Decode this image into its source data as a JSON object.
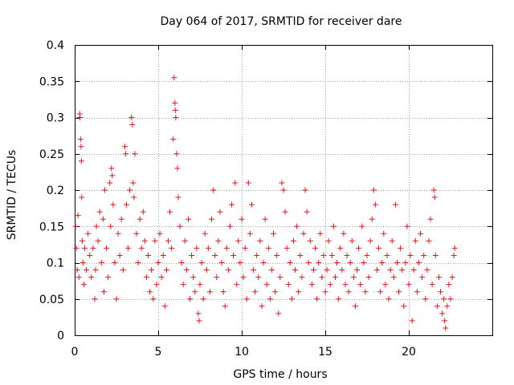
{
  "chart_data": {
    "type": "scatter",
    "title": "Day 064 of 2017, SRMTID for receiver dare",
    "xlabel": "GPS time / hours",
    "ylabel": "SRMTID / TECUs",
    "xlim": [
      0,
      25
    ],
    "ylim": [
      0,
      0.4
    ],
    "xticks": [
      0,
      5,
      10,
      15,
      20
    ],
    "xtick_labels": [
      "0",
      "5",
      "10",
      "15",
      "20"
    ],
    "yticks": [
      0,
      0.05,
      0.1,
      0.15,
      0.2,
      0.25,
      0.3,
      0.35,
      0.4
    ],
    "ytick_labels": [
      "0",
      "0.05",
      "0.1",
      "0.15",
      "0.2",
      "0.25",
      "0.3",
      "0.35",
      "0.4"
    ],
    "grid": true,
    "marker": "+",
    "color": "#e8141a",
    "series": [
      {
        "name": "SRMTID",
        "points": [
          [
            0.05,
            0.15
          ],
          [
            0.1,
            0.12
          ],
          [
            0.15,
            0.09
          ],
          [
            0.2,
            0.165
          ],
          [
            0.25,
            0.08
          ],
          [
            0.3,
            0.305
          ],
          [
            0.32,
            0.3
          ],
          [
            0.35,
            0.27
          ],
          [
            0.38,
            0.26
          ],
          [
            0.4,
            0.24
          ],
          [
            0.42,
            0.19
          ],
          [
            0.45,
            0.13
          ],
          [
            0.5,
            0.1
          ],
          [
            0.55,
            0.07
          ],
          [
            0.6,
            0.12
          ],
          [
            0.7,
            0.09
          ],
          [
            0.8,
            0.14
          ],
          [
            0.9,
            0.11
          ],
          [
            1.0,
            0.08
          ],
          [
            1.1,
            0.12
          ],
          [
            1.2,
            0.05
          ],
          [
            1.25,
            0.09
          ],
          [
            1.3,
            0.15
          ],
          [
            1.4,
            0.13
          ],
          [
            1.5,
            0.17
          ],
          [
            1.6,
            0.1
          ],
          [
            1.7,
            0.16
          ],
          [
            1.75,
            0.06
          ],
          [
            1.8,
            0.2
          ],
          [
            1.9,
            0.12
          ],
          [
            2.0,
            0.08
          ],
          [
            2.1,
            0.21
          ],
          [
            2.15,
            0.15
          ],
          [
            2.2,
            0.23
          ],
          [
            2.25,
            0.22
          ],
          [
            2.3,
            0.18
          ],
          [
            2.4,
            0.1
          ],
          [
            2.5,
            0.05
          ],
          [
            2.6,
            0.14
          ],
          [
            2.7,
            0.11
          ],
          [
            2.8,
            0.16
          ],
          [
            2.9,
            0.09
          ],
          [
            3.0,
            0.26
          ],
          [
            3.05,
            0.25
          ],
          [
            3.1,
            0.18
          ],
          [
            3.2,
            0.12
          ],
          [
            3.3,
            0.2
          ],
          [
            3.4,
            0.3
          ],
          [
            3.45,
            0.29
          ],
          [
            3.5,
            0.21
          ],
          [
            3.55,
            0.19
          ],
          [
            3.6,
            0.25
          ],
          [
            3.7,
            0.14
          ],
          [
            3.8,
            0.1
          ],
          [
            3.9,
            0.16
          ],
          [
            4.0,
            0.12
          ],
          [
            4.1,
            0.17
          ],
          [
            4.2,
            0.13
          ],
          [
            4.3,
            0.08
          ],
          [
            4.4,
            0.11
          ],
          [
            4.5,
            0.06
          ],
          [
            4.6,
            0.09
          ],
          [
            4.7,
            0.05
          ],
          [
            4.8,
            0.13
          ],
          [
            4.9,
            0.07
          ],
          [
            5.0,
            0.1
          ],
          [
            5.1,
            0.14
          ],
          [
            5.2,
            0.08
          ],
          [
            5.3,
            0.11
          ],
          [
            5.4,
            0.04
          ],
          [
            5.5,
            0.09
          ],
          [
            5.6,
            0.13
          ],
          [
            5.7,
            0.17
          ],
          [
            5.8,
            0.12
          ],
          [
            5.9,
            0.27
          ],
          [
            5.95,
            0.355
          ],
          [
            6.0,
            0.32
          ],
          [
            6.02,
            0.31
          ],
          [
            6.05,
            0.3
          ],
          [
            6.1,
            0.25
          ],
          [
            6.15,
            0.23
          ],
          [
            6.2,
            0.19
          ],
          [
            6.3,
            0.15
          ],
          [
            6.4,
            0.1
          ],
          [
            6.5,
            0.07
          ],
          [
            6.6,
            0.13
          ],
          [
            6.7,
            0.09
          ],
          [
            6.8,
            0.16
          ],
          [
            6.9,
            0.05
          ],
          [
            7.0,
            0.11
          ],
          [
            7.1,
            0.08
          ],
          [
            7.2,
            0.06
          ],
          [
            7.3,
            0.12
          ],
          [
            7.4,
            0.03
          ],
          [
            7.45,
            0.02
          ],
          [
            7.5,
            0.07
          ],
          [
            7.6,
            0.1
          ],
          [
            7.7,
            0.05
          ],
          [
            7.8,
            0.14
          ],
          [
            7.9,
            0.09
          ],
          [
            8.0,
            0.12
          ],
          [
            8.1,
            0.06
          ],
          [
            8.2,
            0.16
          ],
          [
            8.3,
            0.2
          ],
          [
            8.4,
            0.11
          ],
          [
            8.5,
            0.08
          ],
          [
            8.6,
            0.13
          ],
          [
            8.7,
            0.17
          ],
          [
            8.8,
            0.1
          ],
          [
            8.9,
            0.06
          ],
          [
            9.0,
            0.04
          ],
          [
            9.1,
            0.12
          ],
          [
            9.2,
            0.09
          ],
          [
            9.3,
            0.15
          ],
          [
            9.4,
            0.18
          ],
          [
            9.5,
            0.11
          ],
          [
            9.6,
            0.21
          ],
          [
            9.7,
            0.07
          ],
          [
            9.8,
            0.13
          ],
          [
            9.9,
            0.1
          ],
          [
            10.0,
            0.16
          ],
          [
            10.1,
            0.08
          ],
          [
            10.2,
            0.12
          ],
          [
            10.3,
            0.05
          ],
          [
            10.4,
            0.21
          ],
          [
            10.5,
            0.14
          ],
          [
            10.6,
            0.18
          ],
          [
            10.7,
            0.09
          ],
          [
            10.8,
            0.06
          ],
          [
            10.9,
            0.11
          ],
          [
            11.0,
            0.08
          ],
          [
            11.1,
            0.13
          ],
          [
            11.2,
            0.04
          ],
          [
            11.3,
            0.1
          ],
          [
            11.4,
            0.16
          ],
          [
            11.5,
            0.07
          ],
          [
            11.6,
            0.12
          ],
          [
            11.7,
            0.05
          ],
          [
            11.8,
            0.09
          ],
          [
            11.9,
            0.14
          ],
          [
            12.0,
            0.06
          ],
          [
            12.1,
            0.11
          ],
          [
            12.2,
            0.03
          ],
          [
            12.3,
            0.08
          ],
          [
            12.4,
            0.21
          ],
          [
            12.5,
            0.2
          ],
          [
            12.6,
            0.17
          ],
          [
            12.7,
            0.12
          ],
          [
            12.8,
            0.07
          ],
          [
            12.9,
            0.1
          ],
          [
            13.0,
            0.05
          ],
          [
            13.1,
            0.13
          ],
          [
            13.2,
            0.09
          ],
          [
            13.3,
            0.15
          ],
          [
            13.4,
            0.06
          ],
          [
            13.5,
            0.11
          ],
          [
            13.6,
            0.08
          ],
          [
            13.7,
            0.14
          ],
          [
            13.8,
            0.2
          ],
          [
            13.9,
            0.17
          ],
          [
            14.0,
            0.1
          ],
          [
            14.1,
            0.13
          ],
          [
            14.2,
            0.07
          ],
          [
            14.3,
            0.09
          ],
          [
            14.4,
            0.12
          ],
          [
            14.5,
            0.05
          ],
          [
            14.6,
            0.1
          ],
          [
            14.7,
            0.14
          ],
          [
            14.8,
            0.08
          ],
          [
            14.9,
            0.11
          ],
          [
            15.0,
            0.06
          ],
          [
            15.1,
            0.09
          ],
          [
            15.2,
            0.13
          ],
          [
            15.3,
            0.07
          ],
          [
            15.4,
            0.11
          ],
          [
            15.5,
            0.15
          ],
          [
            15.6,
            0.08
          ],
          [
            15.7,
            0.1
          ],
          [
            15.8,
            0.05
          ],
          [
            15.9,
            0.12
          ],
          [
            16.0,
            0.09
          ],
          [
            16.1,
            0.14
          ],
          [
            16.2,
            0.07
          ],
          [
            16.3,
            0.11
          ],
          [
            16.4,
            0.06
          ],
          [
            16.5,
            0.1
          ],
          [
            16.6,
            0.13
          ],
          [
            16.7,
            0.08
          ],
          [
            16.8,
            0.04
          ],
          [
            16.9,
            0.09
          ],
          [
            17.0,
            0.12
          ],
          [
            17.1,
            0.07
          ],
          [
            17.2,
            0.15
          ],
          [
            17.3,
            0.1
          ],
          [
            17.4,
            0.06
          ],
          [
            17.5,
            0.11
          ],
          [
            17.6,
            0.08
          ],
          [
            17.7,
            0.13
          ],
          [
            17.8,
            0.16
          ],
          [
            17.9,
            0.2
          ],
          [
            18.0,
            0.18
          ],
          [
            18.1,
            0.09
          ],
          [
            18.2,
            0.12
          ],
          [
            18.3,
            0.06
          ],
          [
            18.4,
            0.1
          ],
          [
            18.5,
            0.14
          ],
          [
            18.6,
            0.07
          ],
          [
            18.7,
            0.11
          ],
          [
            18.8,
            0.05
          ],
          [
            18.9,
            0.09
          ],
          [
            19.0,
            0.13
          ],
          [
            19.1,
            0.08
          ],
          [
            19.2,
            0.18
          ],
          [
            19.3,
            0.1
          ],
          [
            19.4,
            0.06
          ],
          [
            19.5,
            0.12
          ],
          [
            19.6,
            0.09
          ],
          [
            19.7,
            0.04
          ],
          [
            19.8,
            0.1
          ],
          [
            19.9,
            0.15
          ],
          [
            20.0,
            0.07
          ],
          [
            20.1,
            0.11
          ],
          [
            20.2,
            0.02
          ],
          [
            20.3,
            0.09
          ],
          [
            20.4,
            0.13
          ],
          [
            20.5,
            0.06
          ],
          [
            20.6,
            0.1
          ],
          [
            20.7,
            0.14
          ],
          [
            20.8,
            0.08
          ],
          [
            20.9,
            0.11
          ],
          [
            21.0,
            0.05
          ],
          [
            21.1,
            0.09
          ],
          [
            21.2,
            0.13
          ],
          [
            21.3,
            0.16
          ],
          [
            21.4,
            0.07
          ],
          [
            21.5,
            0.2
          ],
          [
            21.55,
            0.19
          ],
          [
            21.6,
            0.11
          ],
          [
            21.7,
            0.04
          ],
          [
            21.8,
            0.08
          ],
          [
            21.9,
            0.06
          ],
          [
            22.0,
            0.03
          ],
          [
            22.1,
            0.05
          ],
          [
            22.15,
            0.02
          ],
          [
            22.2,
            0.01
          ],
          [
            22.3,
            0.04
          ],
          [
            22.4,
            0.07
          ],
          [
            22.5,
            0.05
          ],
          [
            22.6,
            0.08
          ],
          [
            22.7,
            0.11
          ],
          [
            22.75,
            0.12
          ]
        ]
      }
    ]
  }
}
